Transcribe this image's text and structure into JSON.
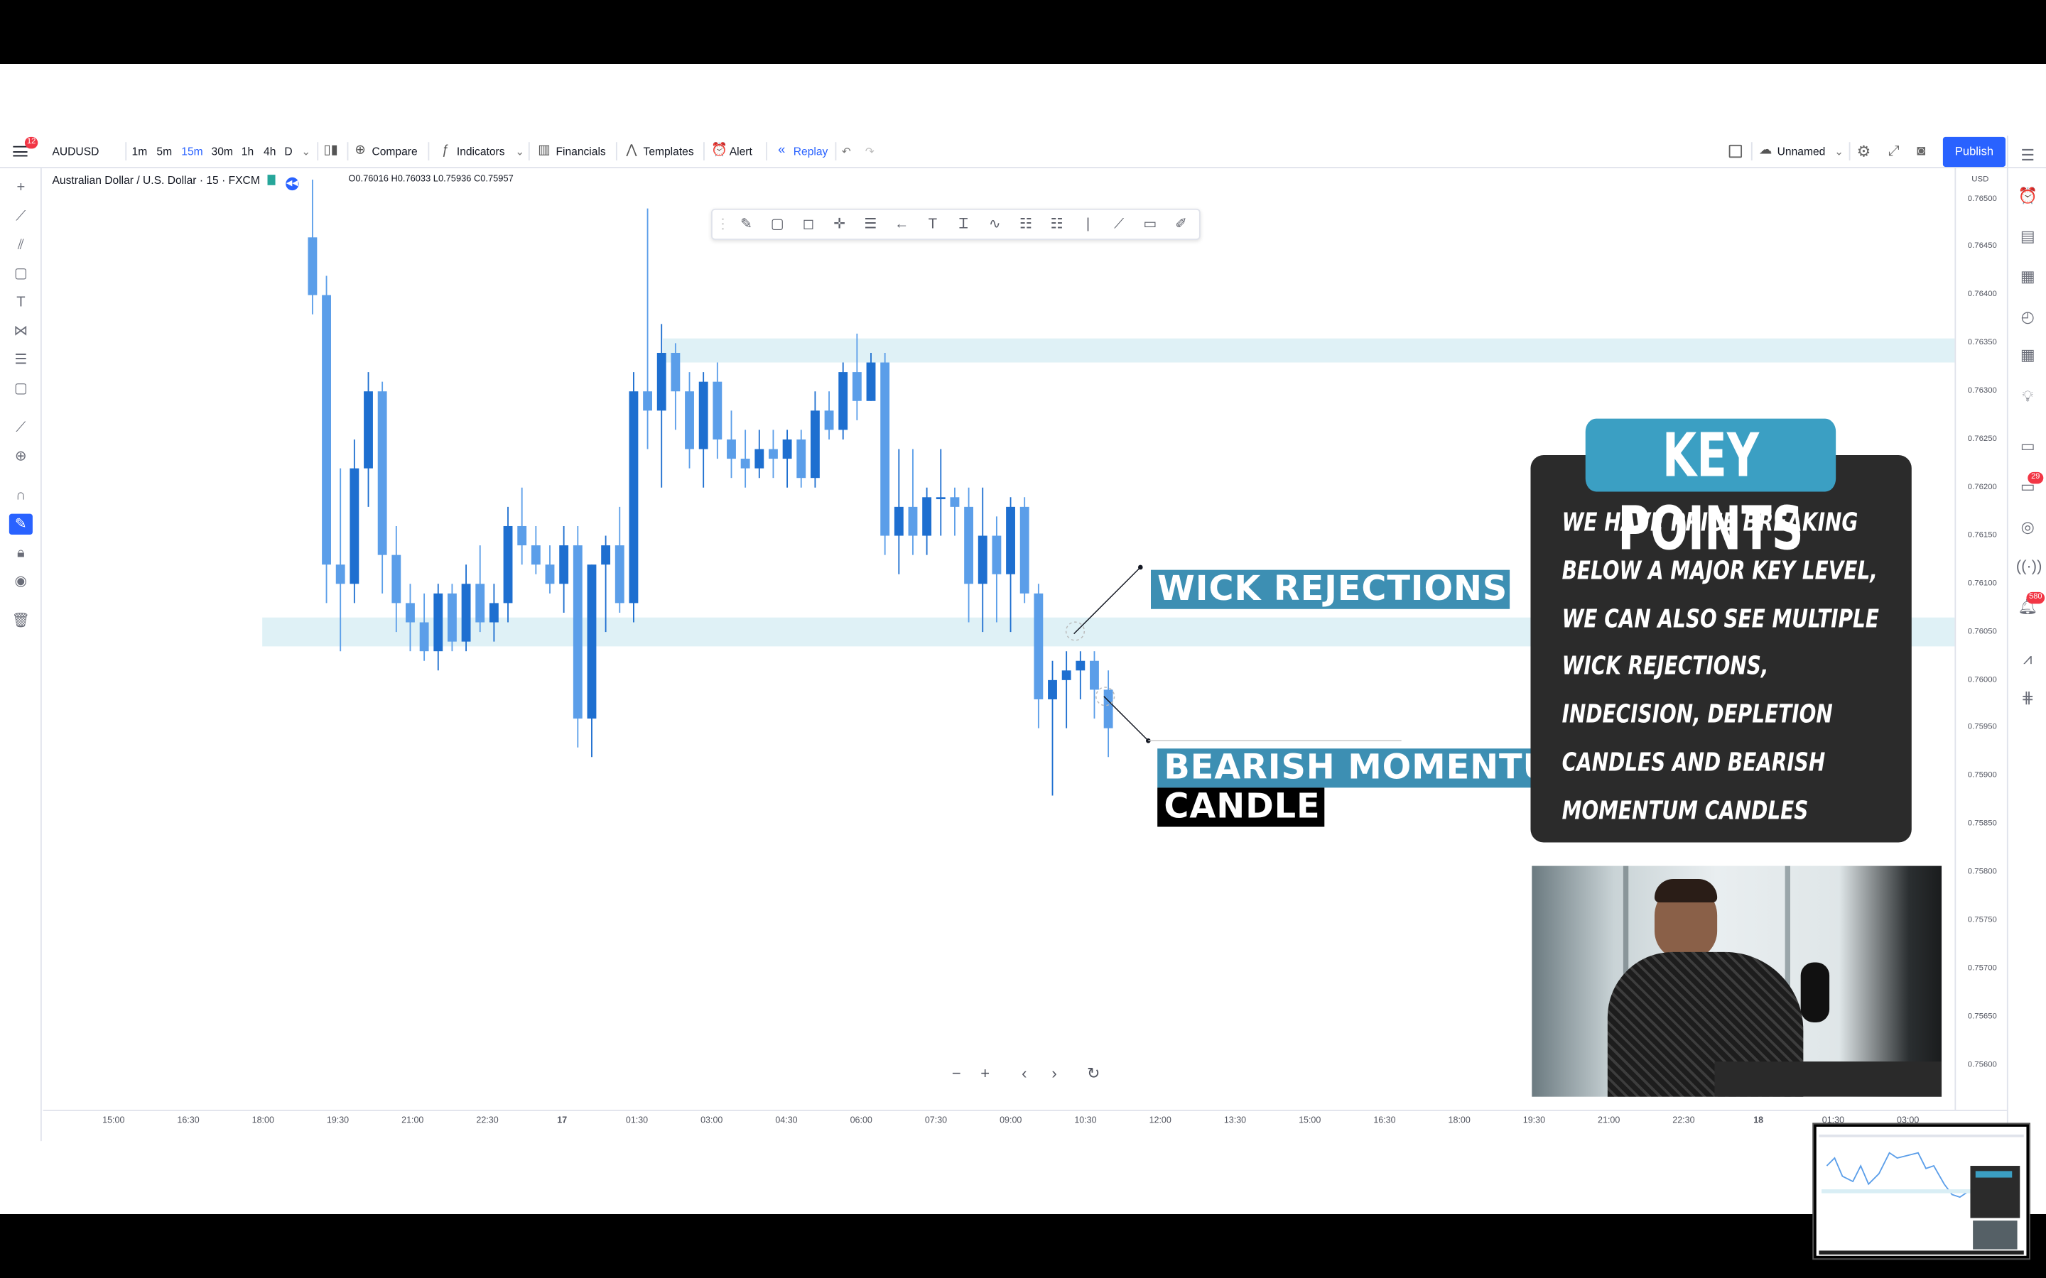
{
  "header": {
    "menu_badge": "12",
    "symbol": "AUDUSD",
    "intervals": [
      "1m",
      "5m",
      "15m",
      "30m",
      "1h",
      "4h",
      "D"
    ],
    "active_interval": "15m",
    "compare_label": "Compare",
    "indicators_label": "Indicators",
    "financials_label": "Financials",
    "templates_label": "Templates",
    "alert_label": "Alert",
    "replay_label": "Replay",
    "layout_name": "Unnamed",
    "publish_label": "Publish"
  },
  "legend": {
    "title": "Australian Dollar / U.S. Dollar · 15 · FXCM",
    "ohlc": "O0.76016 H0.76033 L0.75936 C0.75957"
  },
  "price_axis": {
    "currency": "USD",
    "labels": [
      "0.76500",
      "0.76450",
      "0.76400",
      "0.76350",
      "0.76300",
      "0.76250",
      "0.76200",
      "0.76150",
      "0.76100",
      "0.76050",
      "0.76000",
      "0.75950",
      "0.75900",
      "0.75850",
      "0.75800",
      "0.75750",
      "0.75700",
      "0.75650",
      "0.75600"
    ]
  },
  "time_axis": {
    "labels": [
      "15:00",
      "16:30",
      "18:00",
      "19:30",
      "21:00",
      "22:30",
      "17",
      "01:30",
      "03:00",
      "04:30",
      "06:00",
      "07:30",
      "09:00",
      "10:30",
      "12:00",
      "13:30",
      "15:00",
      "16:30",
      "18:00",
      "19:30",
      "21:00",
      "22:30",
      "18",
      "01:30",
      "03:00"
    ]
  },
  "annotations": {
    "wick_rejections": "WICK REJECTIONS",
    "bearish_line1": "BEARISH MOMENTUM",
    "bearish_line2": "CANDLE"
  },
  "key_points": {
    "title": "KEY POINTS",
    "lines": [
      "WE HAVE PRICE BREAKING",
      "BELOW A MAJOR KEY LEVEL,",
      "WE CAN ALSO SEE MULTIPLE",
      "WICK REJECTIONS,",
      "INDECISION, DEPLETION",
      "CANDLES AND BEARISH",
      "MOMENTUM CANDLES"
    ]
  },
  "right_sidebar": {
    "badge_ideas": "29",
    "badge_notifications": "580"
  },
  "colors": {
    "candle_light": "#5b9ee9",
    "candle_dark": "#1e6fd0",
    "zone": "#d9eef5",
    "accent": "#2962ff",
    "caption_bg": "#3d8fb3",
    "key_points_bg": "#2b2b2b"
  },
  "chart_data": {
    "type": "candlestick",
    "symbol": "AUDUSD",
    "timeframe": "15",
    "ylim": [
      0.7558,
      0.7652
    ],
    "zones": [
      {
        "low": 0.7633,
        "high": 0.76355
      },
      {
        "low": 0.76035,
        "high": 0.76065
      }
    ],
    "candles": [
      [
        0.7646,
        0.7652,
        0.7638,
        0.764
      ],
      [
        0.764,
        0.7642,
        0.7608,
        0.7612
      ],
      [
        0.7612,
        0.7622,
        0.7603,
        0.761
      ],
      [
        0.761,
        0.7625,
        0.7608,
        0.7622
      ],
      [
        0.7622,
        0.7632,
        0.7618,
        0.763
      ],
      [
        0.763,
        0.7631,
        0.7609,
        0.7613
      ],
      [
        0.7613,
        0.7616,
        0.7605,
        0.7608
      ],
      [
        0.7608,
        0.761,
        0.7603,
        0.7606
      ],
      [
        0.7606,
        0.7609,
        0.7602,
        0.7603
      ],
      [
        0.7603,
        0.761,
        0.7601,
        0.7609
      ],
      [
        0.7609,
        0.761,
        0.7603,
        0.7604
      ],
      [
        0.7604,
        0.7612,
        0.7603,
        0.761
      ],
      [
        0.761,
        0.7614,
        0.7605,
        0.7606
      ],
      [
        0.7606,
        0.761,
        0.7604,
        0.7608
      ],
      [
        0.7608,
        0.7618,
        0.7606,
        0.7616
      ],
      [
        0.7616,
        0.762,
        0.7612,
        0.7614
      ],
      [
        0.7614,
        0.7616,
        0.7611,
        0.7612
      ],
      [
        0.7612,
        0.7614,
        0.7609,
        0.761
      ],
      [
        0.761,
        0.7616,
        0.7607,
        0.7614
      ],
      [
        0.7614,
        0.7616,
        0.7593,
        0.7596
      ],
      [
        0.7596,
        0.7612,
        0.7592,
        0.7612
      ],
      [
        0.7612,
        0.7615,
        0.7605,
        0.7614
      ],
      [
        0.7614,
        0.7618,
        0.7607,
        0.7608
      ],
      [
        0.7608,
        0.7632,
        0.7606,
        0.763
      ],
      [
        0.763,
        0.7649,
        0.7624,
        0.7628
      ],
      [
        0.7628,
        0.7637,
        0.762,
        0.7634
      ],
      [
        0.7634,
        0.7635,
        0.7626,
        0.763
      ],
      [
        0.763,
        0.7632,
        0.7622,
        0.7624
      ],
      [
        0.7624,
        0.7632,
        0.762,
        0.7631
      ],
      [
        0.7631,
        0.7633,
        0.7623,
        0.7625
      ],
      [
        0.7625,
        0.7628,
        0.7621,
        0.7623
      ],
      [
        0.7623,
        0.7626,
        0.762,
        0.7622
      ],
      [
        0.7622,
        0.7626,
        0.7621,
        0.7624
      ],
      [
        0.7624,
        0.7626,
        0.7621,
        0.7623
      ],
      [
        0.7623,
        0.7626,
        0.762,
        0.7625
      ],
      [
        0.7625,
        0.7626,
        0.762,
        0.7621
      ],
      [
        0.7621,
        0.763,
        0.762,
        0.7628
      ],
      [
        0.7628,
        0.763,
        0.7625,
        0.7626
      ],
      [
        0.7626,
        0.7633,
        0.7625,
        0.7632
      ],
      [
        0.7632,
        0.7636,
        0.7627,
        0.7629
      ],
      [
        0.7629,
        0.7634,
        0.7629,
        0.7633
      ],
      [
        0.7633,
        0.7634,
        0.7613,
        0.7615
      ],
      [
        0.7615,
        0.7624,
        0.7611,
        0.7618
      ],
      [
        0.7618,
        0.7624,
        0.7613,
        0.7615
      ],
      [
        0.7615,
        0.762,
        0.7613,
        0.7619
      ],
      [
        0.7619,
        0.7624,
        0.7615,
        0.7619
      ],
      [
        0.7619,
        0.762,
        0.7615,
        0.7618
      ],
      [
        0.7618,
        0.762,
        0.7606,
        0.761
      ],
      [
        0.761,
        0.762,
        0.7605,
        0.7615
      ],
      [
        0.7615,
        0.7617,
        0.7606,
        0.7611
      ],
      [
        0.7611,
        0.7619,
        0.7605,
        0.7618
      ],
      [
        0.7618,
        0.7619,
        0.7608,
        0.7609
      ],
      [
        0.7609,
        0.761,
        0.7595,
        0.7598
      ],
      [
        0.7598,
        0.7602,
        0.7588,
        0.76
      ],
      [
        0.76,
        0.7603,
        0.7595,
        0.7601
      ],
      [
        0.7601,
        0.7603,
        0.7598,
        0.7602
      ],
      [
        0.7602,
        0.7603,
        0.7596,
        0.7599
      ],
      [
        0.7599,
        0.7601,
        0.7592,
        0.7595
      ]
    ]
  }
}
